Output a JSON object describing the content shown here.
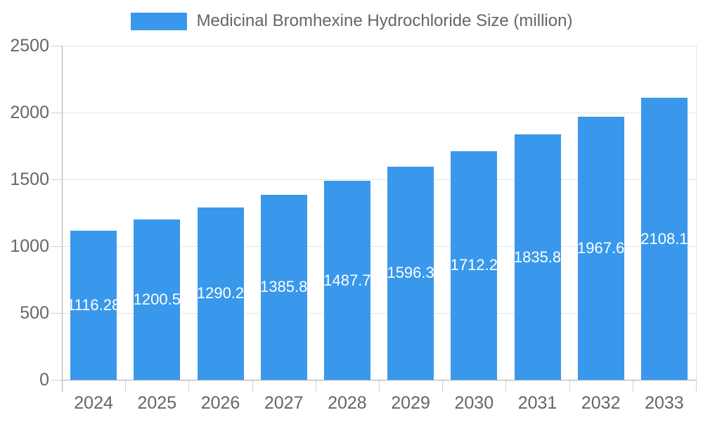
{
  "legend": {
    "label": "Medicinal Bromhexine Hydrochloride Size (million)"
  },
  "colors": {
    "bar": "#3998eb",
    "axis_text": "#666666",
    "grid": "#e5e5e5",
    "tick": "#d2d2d2",
    "axis_line": "#ababab",
    "value_label": "#ffffff",
    "background": "#ffffff"
  },
  "chart_data": {
    "type": "bar",
    "title": "Medicinal Bromhexine Hydrochloride Size (million)",
    "categories": [
      "2024",
      "2025",
      "2026",
      "2027",
      "2028",
      "2029",
      "2030",
      "2031",
      "2032",
      "2033"
    ],
    "values": [
      1116.28,
      1200.5,
      1290.2,
      1385.8,
      1487.7,
      1596.3,
      1712.2,
      1835.8,
      1967.6,
      2108.1
    ],
    "value_labels": [
      "1116.28",
      "1200.5",
      "1290.2",
      "1385.8",
      "1487.7",
      "1596.3",
      "1712.2",
      "1835.8",
      "1967.6",
      "2108.1"
    ],
    "xlabel": "",
    "ylabel": "",
    "ylim": [
      0,
      2500
    ],
    "yticks": [
      0,
      500,
      1000,
      1500,
      2000,
      2500
    ],
    "y_tick_labels": [
      "0",
      "500",
      "1000",
      "1500",
      "2000",
      "2500"
    ],
    "grid": true,
    "legend_position": "top"
  }
}
